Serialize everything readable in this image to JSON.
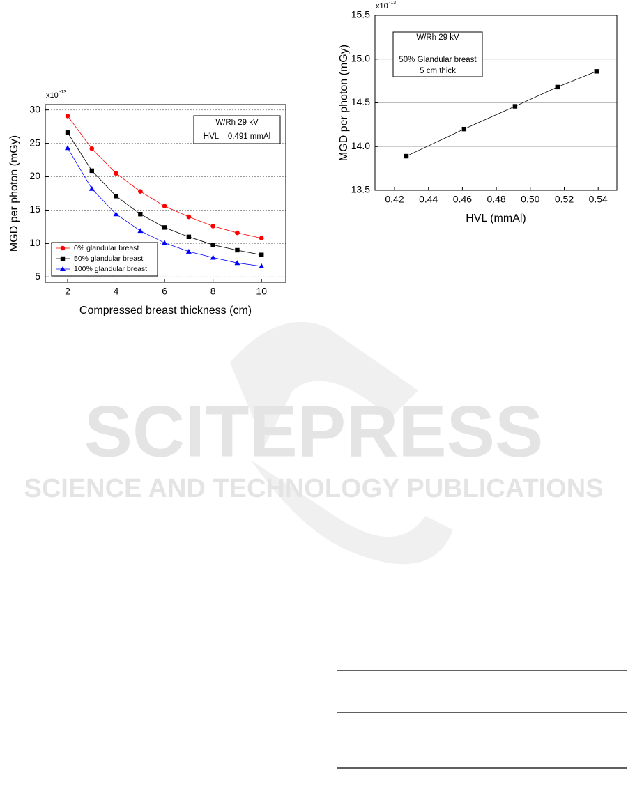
{
  "watermark": {
    "title": "SCITEPRESS",
    "subtitle": "SCIENCE AND TECHNOLOGY PUBLICATIONS"
  },
  "chart_data": [
    {
      "type": "line",
      "x_label": "Compressed breast thickness (cm)",
      "y_label": "MGD per photon (mGy)",
      "multiplier": "x10",
      "multiplier_exponent": "-13",
      "annotation": [
        "W/Rh 29 kV",
        "HVL = 0.491 mmAl"
      ],
      "x": [
        2,
        3,
        4,
        5,
        6,
        7,
        8,
        9,
        10
      ],
      "series": [
        {
          "name": "0% glandular breast",
          "color": "#ff0000",
          "marker": "circle",
          "values": [
            29.1,
            24.2,
            20.5,
            17.8,
            15.6,
            14.0,
            12.6,
            11.6,
            10.8
          ]
        },
        {
          "name": "50% glandular breast",
          "color": "#000000",
          "marker": "square",
          "values": [
            26.6,
            20.9,
            17.1,
            14.4,
            12.4,
            11.0,
            9.8,
            9.0,
            8.3
          ]
        },
        {
          "name": "100% glandular breast",
          "color": "#0000ff",
          "marker": "triangle",
          "values": [
            24.3,
            18.2,
            14.4,
            11.9,
            10.1,
            8.8,
            7.9,
            7.1,
            6.6
          ]
        }
      ],
      "xlim": [
        1.08,
        11.0
      ],
      "ylim": [
        4.2,
        30.8
      ],
      "xticks": [
        2,
        4,
        6,
        8,
        10
      ],
      "yticks": [
        5,
        10,
        15,
        20,
        25,
        30
      ],
      "grid": "dotted",
      "legend": "lower-left"
    },
    {
      "type": "line",
      "x_label": "HVL (mmAl)",
      "y_label": "MGD per photon (mGy)",
      "multiplier": "x10",
      "multiplier_exponent": "-13",
      "annotation": [
        "W/Rh 29 kV",
        "",
        "50% Glandular breast",
        "5 cm thick"
      ],
      "x": [
        0.427,
        0.461,
        0.491,
        0.516,
        0.539
      ],
      "series": [
        {
          "color": "#000000",
          "marker": "square",
          "values": [
            13.89,
            14.2,
            14.46,
            14.68,
            14.86
          ]
        }
      ],
      "xlim": [
        0.4085,
        0.551
      ],
      "ylim": [
        13.5,
        15.5
      ],
      "xticks": [
        0.42,
        0.44,
        0.46,
        0.48,
        {
          "value": 0.5,
          "label": "0.50"
        },
        0.52,
        0.54
      ],
      "yticks": [
        13.5,
        {
          "value": 14,
          "label": "14.0"
        },
        14.5,
        {
          "value": 15,
          "label": "15.0"
        },
        15.5
      ],
      "grid": "solid"
    }
  ]
}
